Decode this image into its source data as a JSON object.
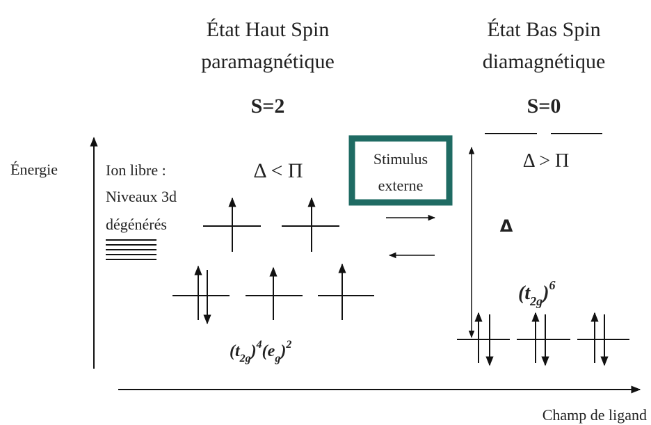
{
  "header": {
    "high_spin": {
      "title": "État Haut Spin",
      "subtitle": "paramagnétique",
      "spin": "S=2"
    },
    "low_spin": {
      "title": "État Bas Spin",
      "subtitle": "diamagnétique",
      "spin": "S=0"
    }
  },
  "axes": {
    "y_label": "Énergie",
    "x_label": "Champ de ligand"
  },
  "free_ion": {
    "line1": "Ion libre :",
    "line2": "Niveaux 3d",
    "line3": "dégénérés"
  },
  "high_condition": "Δ < Π",
  "low_condition": "Δ > Π",
  "gap_label": "Δ",
  "stimulus": {
    "line1": "Stimulus",
    "line2": "externe"
  },
  "high_config": [
    {
      "base": "t",
      "sub": "2g",
      "sup": "4"
    },
    {
      "base": "e",
      "sub": "g",
      "sup": "2"
    }
  ],
  "low_config": [
    {
      "base": "t",
      "sub": "2g",
      "sup": "6"
    }
  ]
}
